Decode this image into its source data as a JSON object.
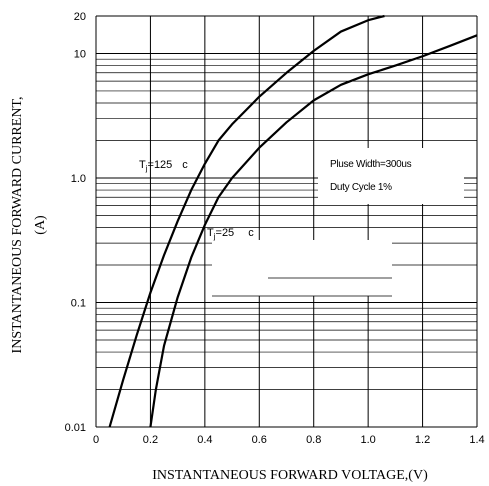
{
  "chart_data": {
    "type": "line",
    "title": "",
    "xlabel": "INSTANTANEOUS FORWARD VOLTAGE,(V)",
    "ylabel_line1": "INSTANTANEOUS FORWARD CURRENT,",
    "ylabel_line2": "(A)",
    "xlim": [
      0,
      1.4
    ],
    "ylim": [
      0.01,
      20
    ],
    "y_scale": "log",
    "grid": "horizontal log gridlines, vertical lines every 0.2 V",
    "x_ticks": [
      "0",
      "0.2",
      "0.4",
      "0.6",
      "0.8",
      "1.0",
      "1.2",
      "1.4"
    ],
    "x_tick_values": [
      0,
      0.2,
      0.4,
      0.6,
      0.8,
      1.0,
      1.2,
      1.4
    ],
    "y_ticks": [
      "0.01",
      "0.1",
      "1.0",
      "10",
      "20"
    ],
    "y_tick_values": [
      0.01,
      0.1,
      1.0,
      10,
      20
    ],
    "series": [
      {
        "name": "Tj=125 c",
        "label_main": "T",
        "label_sub": "j",
        "label_rest": "=125",
        "label_unit": "c",
        "x": [
          0.05,
          0.1,
          0.15,
          0.2,
          0.25,
          0.3,
          0.35,
          0.4,
          0.45,
          0.5,
          0.6,
          0.7,
          0.8,
          0.9,
          1.0,
          1.06
        ],
        "y": [
          0.01,
          0.024,
          0.055,
          0.12,
          0.24,
          0.45,
          0.8,
          1.3,
          2.0,
          2.7,
          4.5,
          7.0,
          10.5,
          15.0,
          18.5,
          20
        ]
      },
      {
        "name": "Tj=25 c",
        "label_main": "T",
        "label_sub": "j",
        "label_rest": "=25",
        "label_unit": "c",
        "x": [
          0.2,
          0.22,
          0.25,
          0.3,
          0.35,
          0.4,
          0.45,
          0.5,
          0.6,
          0.7,
          0.8,
          0.9,
          1.0,
          1.1,
          1.2,
          1.3,
          1.4
        ],
        "y": [
          0.01,
          0.02,
          0.045,
          0.11,
          0.23,
          0.42,
          0.7,
          1.0,
          1.75,
          2.8,
          4.2,
          5.6,
          6.8,
          8.0,
          9.5,
          11.5,
          14.0
        ]
      }
    ],
    "annotations": [
      "Pluse Width=300us",
      "Duty Cycle 1%"
    ]
  }
}
